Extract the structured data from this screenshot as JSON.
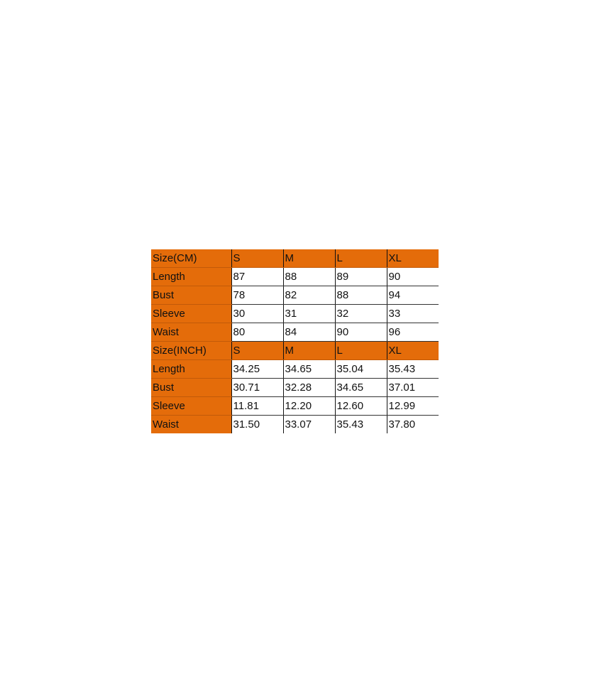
{
  "colors": {
    "header": "#E46C0A"
  },
  "tables": [
    {
      "header": [
        "Size(CM)",
        "S",
        "M",
        "L",
        "XL"
      ],
      "rows": [
        [
          "Length",
          "87",
          "88",
          "89",
          "90"
        ],
        [
          "Bust",
          "78",
          "82",
          "88",
          "94"
        ],
        [
          "Sleeve",
          "30",
          "31",
          "32",
          "33"
        ],
        [
          "Waist",
          "80",
          "84",
          "90",
          "96"
        ]
      ]
    },
    {
      "header": [
        "Size(INCH)",
        "S",
        "M",
        "L",
        "XL"
      ],
      "rows": [
        [
          "Length",
          "34.25",
          "34.65",
          "35.04",
          "35.43"
        ],
        [
          "Bust",
          "30.71",
          "32.28",
          "34.65",
          "37.01"
        ],
        [
          "Sleeve",
          "11.81",
          "12.20",
          "12.60",
          "12.99"
        ],
        [
          "Waist",
          "31.50",
          "33.07",
          "35.43",
          "37.80"
        ]
      ]
    }
  ]
}
